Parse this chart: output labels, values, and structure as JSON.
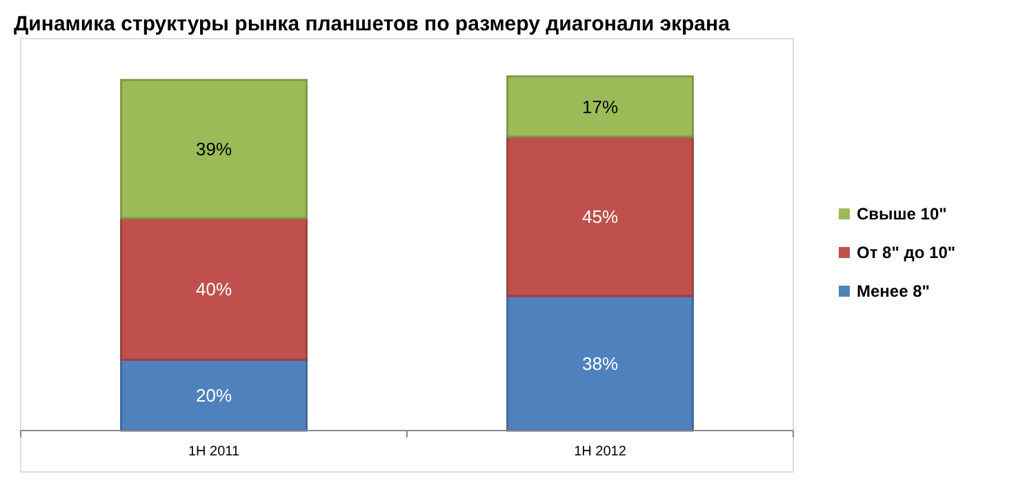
{
  "chart_data": {
    "type": "bar",
    "stacked": true,
    "title": "Динамика структуры рынка планшетов по размеру диагонали экрана",
    "categories": [
      "1H 2011",
      "1H 2012"
    ],
    "series": [
      {
        "name": "Менее 8\"",
        "color": "#4f81bd",
        "values": [
          20,
          38
        ],
        "value_labels": [
          "20%",
          "38%"
        ]
      },
      {
        "name": "От 8\" до 10\"",
        "color": "#c0504d",
        "values": [
          40,
          45
        ],
        "value_labels": [
          "40%",
          "45%"
        ]
      },
      {
        "name": "Свыше 10\"",
        "color": "#9bbb59",
        "values": [
          39,
          17
        ],
        "value_labels": [
          "39%",
          "17%"
        ]
      }
    ],
    "legend": "right"
  }
}
